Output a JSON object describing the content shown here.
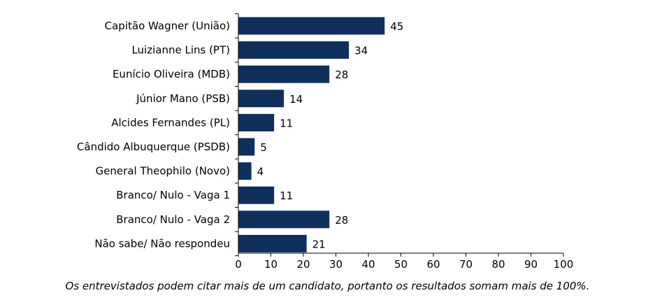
{
  "chart_data": {
    "type": "bar",
    "orientation": "horizontal",
    "categories": [
      "Capitão Wagner (União)",
      "Luizianne Lins (PT)",
      "Eunício Oliveira (MDB)",
      "Júnior Mano (PSB)",
      "Alcides Fernandes (PL)",
      "Cândido Albuquerque (PSDB)",
      "General Theophilo (Novo)",
      "Branco/ Nulo - Vaga 1",
      "Branco/ Nulo - Vaga 2",
      "Não sabe/ Não respondeu"
    ],
    "values": [
      45,
      34,
      28,
      14,
      11,
      5,
      4,
      11,
      28,
      21
    ],
    "xlim": [
      0,
      100
    ],
    "xticks": [
      0,
      10,
      20,
      30,
      40,
      50,
      60,
      70,
      80,
      90,
      100
    ],
    "grid": false,
    "bar_color": "#0f2f5c",
    "axis_color": "#000000"
  },
  "footnote": "Os entrevistados podem citar mais de um candidato, portanto os resultados somam mais de 100%."
}
